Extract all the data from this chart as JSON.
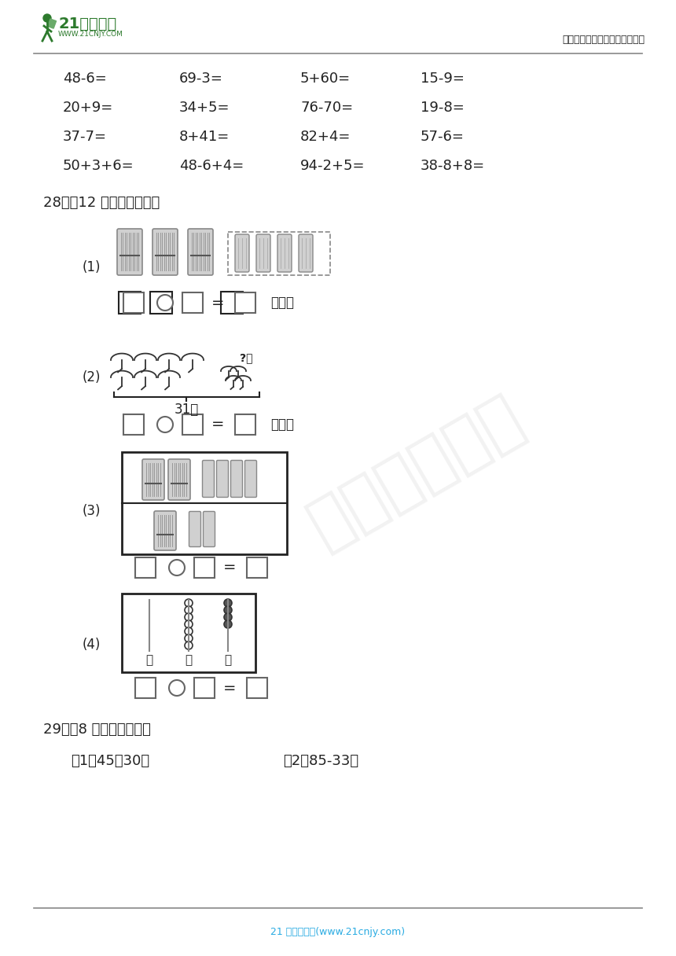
{
  "bg_color": "#ffffff",
  "header_logo_text": "21世纪教育",
  "header_logo_sub": "WWW.21CNJY.COM",
  "header_right": "中小学教育资源及组卷应用平台",
  "footer_text": "21 世纪教育网(www.21cnjy.com)",
  "math_rows": [
    [
      "48-6=",
      "69-3=",
      "5+60=",
      "15-9="
    ],
    [
      "20+9=",
      "34+5=",
      "76-70=",
      "19-8="
    ],
    [
      "37-7=",
      "8+41=",
      "82+4=",
      "57-6="
    ],
    [
      "50+3+6=",
      "48-6+4=",
      "94-2+5=",
      "38-8+8="
    ]
  ],
  "q28_title": "28．（12 分）看图列算式",
  "q29_title": "29．（8 分）列竖式计算",
  "q29_sub1": "（1）45＋30＝",
  "q29_sub2": "（2）85-33＝",
  "text_color": "#222222",
  "gray_color": "#666666",
  "footer_color": "#29abe2",
  "green_dark": "#2d7a2d",
  "header_line_color": "#888888",
  "footer_line_color": "#888888"
}
